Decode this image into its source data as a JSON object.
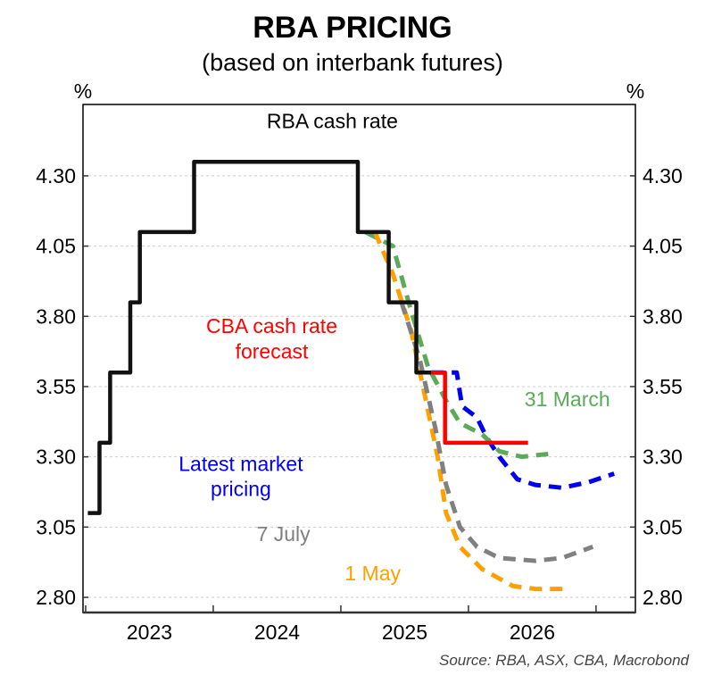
{
  "chart_data": {
    "type": "line",
    "title": "RBA PRICING",
    "subtitle": "(based on interbank futures)",
    "ylabel_left": "%",
    "ylabel_right": "%",
    "xlabel": "",
    "x_units": "months since Jan 2023",
    "xlim": [
      -0.25,
      51.7
    ],
    "ylim": [
      2.746,
      4.554
    ],
    "yticks": [
      4.3,
      4.05,
      3.8,
      3.55,
      3.3,
      3.05,
      2.8
    ],
    "ytick_labels": [
      "4.30",
      "4.05",
      "3.80",
      "3.55",
      "3.30",
      "3.05",
      "2.80"
    ],
    "xticks": [
      0,
      12,
      24,
      36,
      48
    ],
    "xtick_labels": [
      {
        "label": "2023",
        "at": 6
      },
      {
        "label": "2024",
        "at": 18
      },
      {
        "label": "2025",
        "at": 30
      },
      {
        "label": "2026",
        "at": 42
      }
    ],
    "grid": "horizontal-dotted",
    "series": [
      {
        "name": "RBA cash rate",
        "color": "#111111",
        "style": "solid",
        "x": [
          0.2,
          1.3,
          1.3,
          2.3,
          2.3,
          4.2,
          4.2,
          5.1,
          5.1,
          10.2,
          10.2,
          25.6,
          25.6,
          28.5,
          28.5,
          31.1,
          31.1,
          32.5
        ],
        "y": [
          3.1,
          3.1,
          3.35,
          3.35,
          3.6,
          3.6,
          3.85,
          3.85,
          4.1,
          4.1,
          4.35,
          4.35,
          4.1,
          4.1,
          3.85,
          3.85,
          3.6,
          3.6
        ]
      },
      {
        "name": "CBA cash rate forecast",
        "color": "#ff0000",
        "style": "solid",
        "x": [
          32.5,
          33.8,
          33.8,
          41.6
        ],
        "y": [
          3.6,
          3.6,
          3.35,
          3.35
        ]
      },
      {
        "name": "Latest market pricing",
        "color": "#0000ee",
        "style": "dashed",
        "x": [
          32.5,
          34.9,
          35.4,
          36.8,
          37.7,
          38.9,
          40.6,
          42.3,
          44.8,
          47.3,
          49.7
        ],
        "y": [
          3.6,
          3.6,
          3.48,
          3.44,
          3.37,
          3.3,
          3.22,
          3.2,
          3.19,
          3.21,
          3.24
        ]
      },
      {
        "name": "31 March",
        "color": "#5aaa5a",
        "style": "dashed",
        "x": [
          26.3,
          28.9,
          30.6,
          32.2,
          33.9,
          35.2,
          37.3,
          38.9,
          41.0,
          43.5
        ],
        "y": [
          4.1,
          4.05,
          3.82,
          3.62,
          3.5,
          3.42,
          3.38,
          3.32,
          3.3,
          3.31
        ]
      },
      {
        "name": "1 May",
        "color": "#ffa000",
        "style": "dashed",
        "x": [
          27.2,
          28.9,
          30.6,
          32.0,
          33.1,
          33.9,
          35.2,
          37.3,
          40.2,
          42.3,
          45.6
        ],
        "y": [
          4.1,
          3.95,
          3.75,
          3.5,
          3.3,
          3.1,
          2.98,
          2.9,
          2.84,
          2.83,
          2.83
        ]
      },
      {
        "name": "7 July",
        "color": "#808080",
        "style": "dashed",
        "x": [
          29.7,
          31.4,
          32.9,
          33.9,
          35.2,
          36.8,
          38.9,
          42.3,
          44.8,
          47.7
        ],
        "y": [
          3.85,
          3.65,
          3.4,
          3.2,
          3.05,
          2.98,
          2.94,
          2.93,
          2.94,
          2.98
        ]
      }
    ],
    "annotations": [
      {
        "text": "RBA cash rate",
        "color": "#000000",
        "x": 23.2,
        "y": 4.47
      },
      {
        "text": "CBA cash rate",
        "color": "#ff0000",
        "x": 17.5,
        "y": 3.74
      },
      {
        "text": "forecast",
        "color": "#ff0000",
        "x": 17.5,
        "y": 3.65
      },
      {
        "text": "31 March",
        "color": "#5aaa5a",
        "x": 45.3,
        "y": 3.48
      },
      {
        "text": "Latest market",
        "color": "#0000ee",
        "x": 14.6,
        "y": 3.25
      },
      {
        "text": "pricing",
        "color": "#0000ee",
        "x": 14.6,
        "y": 3.16
      },
      {
        "text": "7 July",
        "color": "#808080",
        "x": 18.6,
        "y": 3.0
      },
      {
        "text": "1 May",
        "color": "#ffa000",
        "x": 27.0,
        "y": 2.86
      }
    ],
    "source": "Source: RBA, ASX, CBA, Macrobond"
  }
}
